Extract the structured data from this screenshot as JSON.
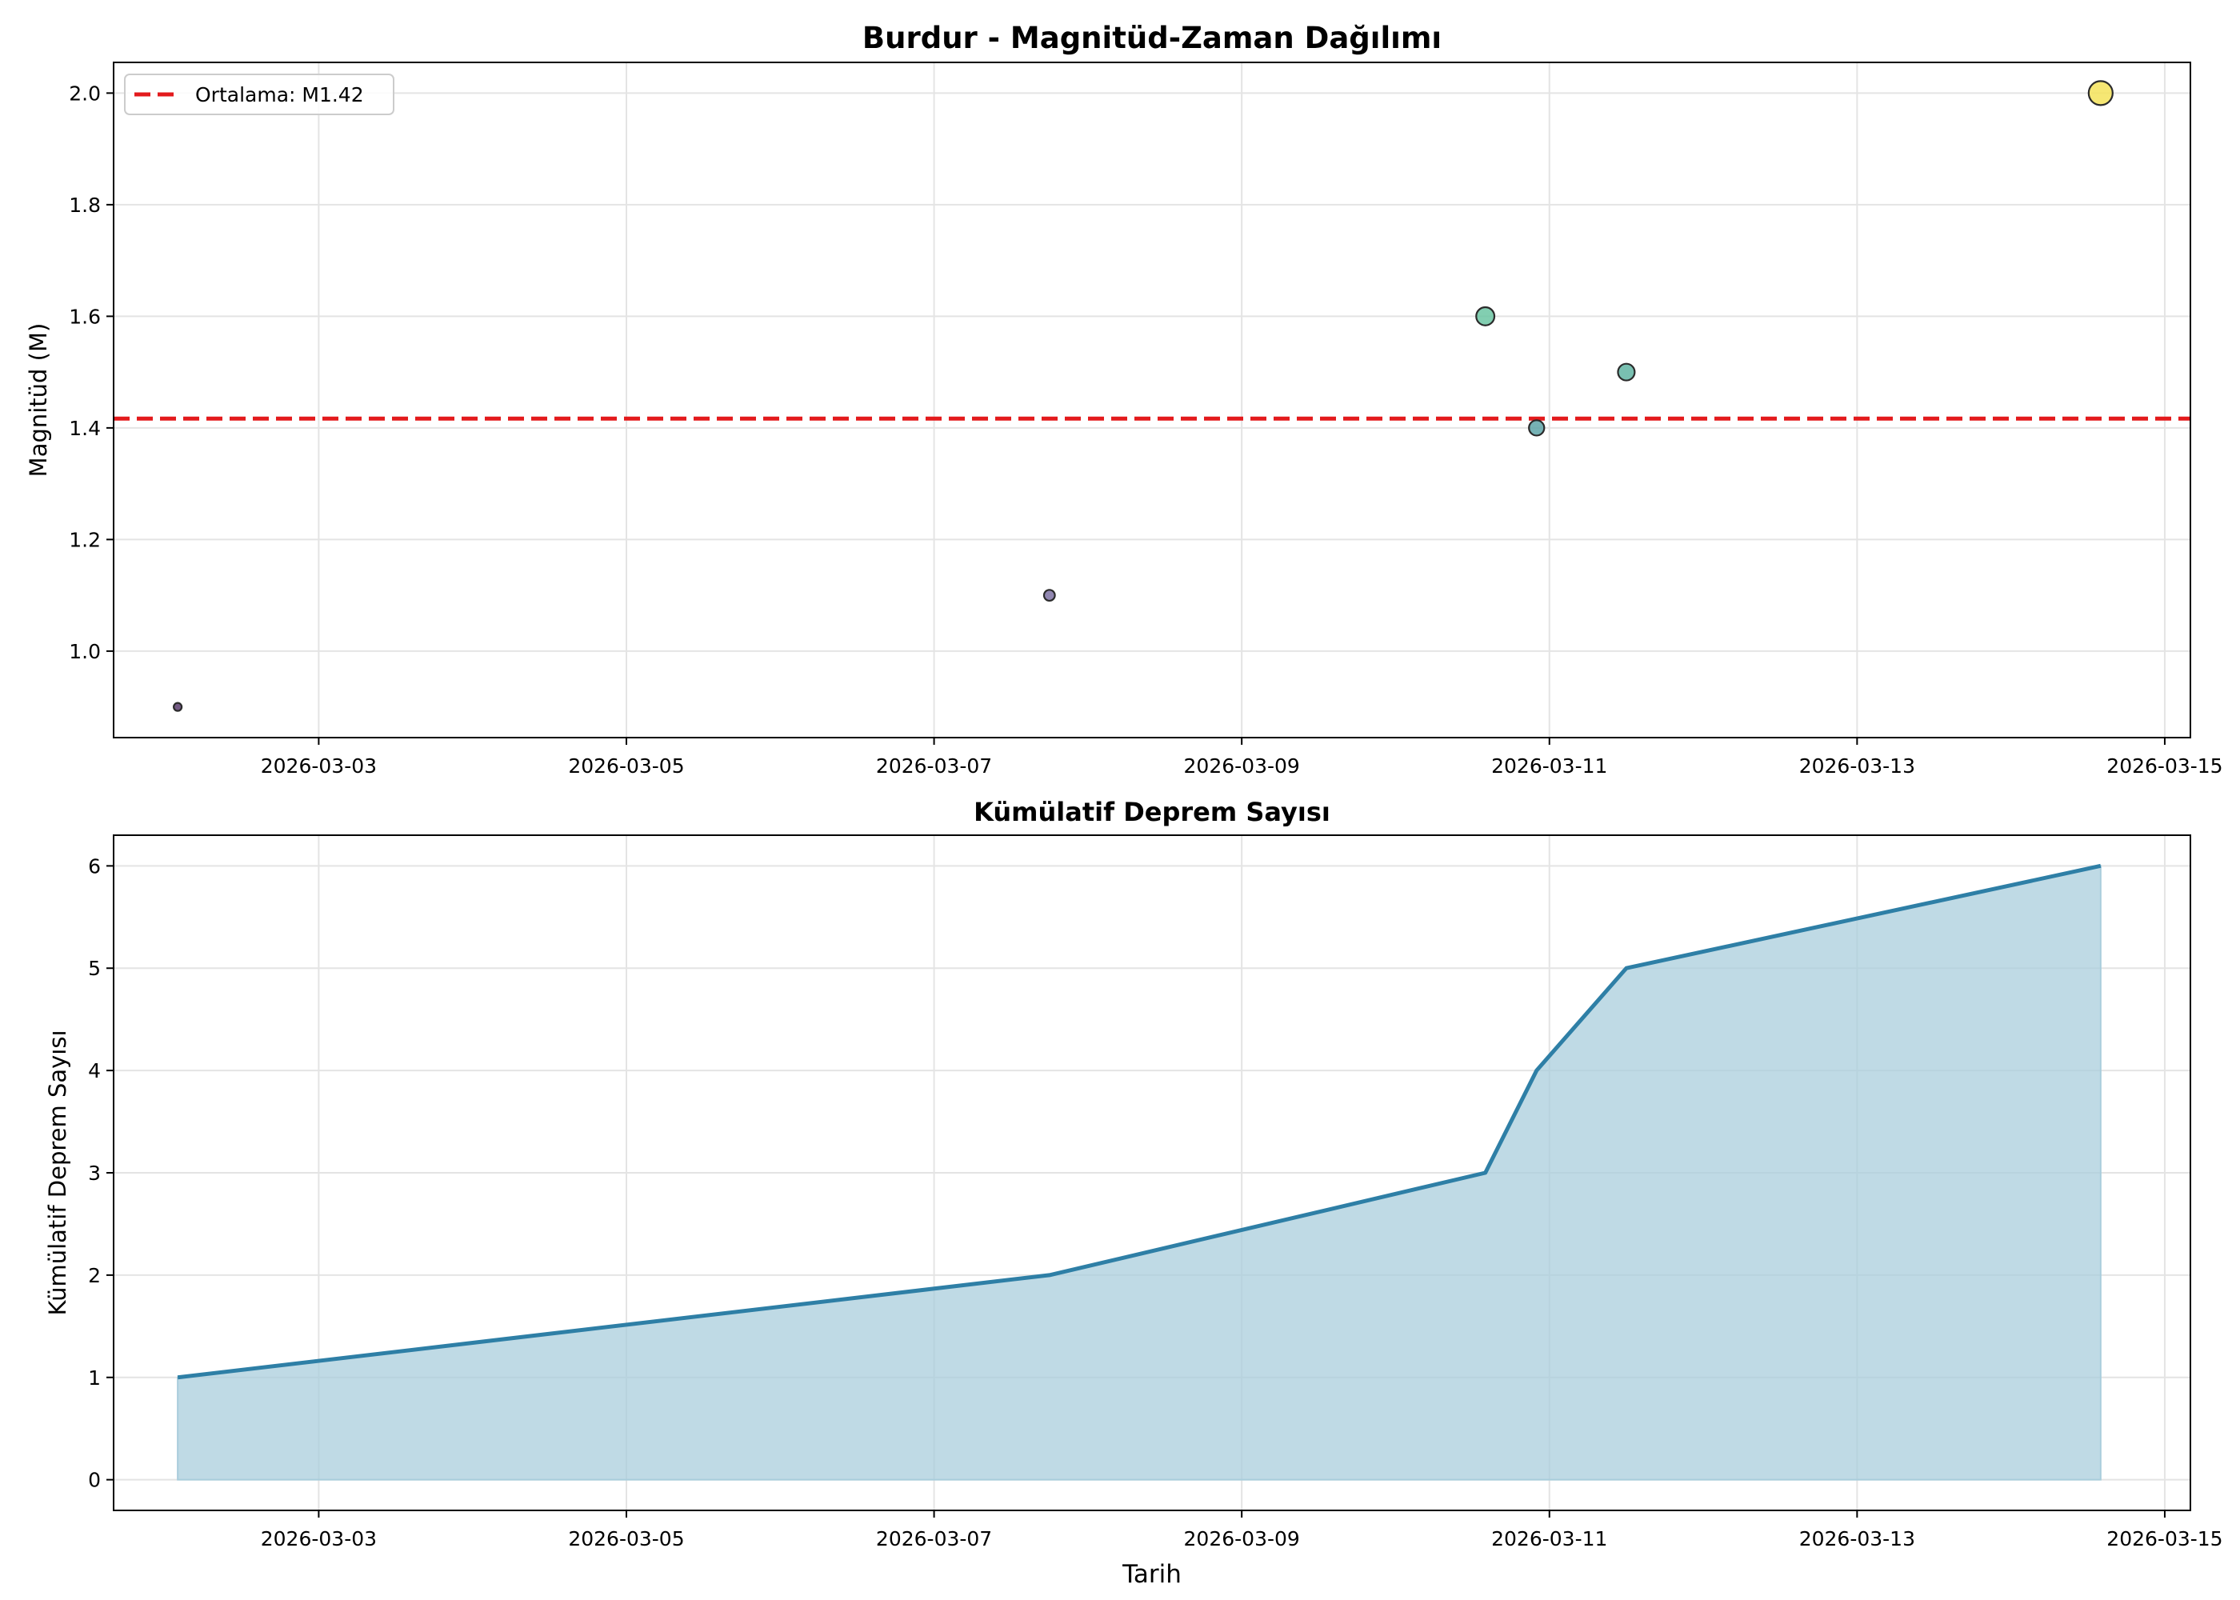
{
  "chart_data": [
    {
      "type": "scatter",
      "title": "Burdur - Magnitüd-Zaman Dağılımı",
      "xlabel": "",
      "ylabel": "Magnitüd (M)",
      "x_ticks": [
        "2026-03-03",
        "2026-03-05",
        "2026-03-07",
        "2026-03-09",
        "2026-03-11",
        "2026-03-13",
        "2026-03-15"
      ],
      "y_ticks": [
        "1.0",
        "1.2",
        "1.4",
        "1.6",
        "1.8",
        "2.0"
      ],
      "xlim": [
        "2026-03-01T16:00",
        "2026-03-15T04:00"
      ],
      "ylim": [
        0.845,
        2.055
      ],
      "grid": true,
      "legend_position": "top-left",
      "legend": [
        {
          "label": "Ortalama: M1.42",
          "color": "#e31a1c",
          "style": "dashed"
        }
      ],
      "mean_line": 1.4167,
      "points": [
        {
          "x": "2026-03-02T02:00",
          "y": 0.9,
          "color": "#5a3d6e"
        },
        {
          "x": "2026-03-07T18:00",
          "y": 1.1,
          "color": "#7e72a3"
        },
        {
          "x": "2026-03-10T14:00",
          "y": 1.6,
          "color": "#6cc6a3"
        },
        {
          "x": "2026-03-10T22:00",
          "y": 1.4,
          "color": "#5ea5a8"
        },
        {
          "x": "2026-03-11T12:00",
          "y": 1.5,
          "color": "#61b5a3"
        },
        {
          "x": "2026-03-14T14:00",
          "y": 2.0,
          "color": "#f5e35a"
        }
      ]
    },
    {
      "type": "area",
      "title": "Kümülatif Deprem Sayısı",
      "xlabel": "Tarih",
      "ylabel": "Kümülatif Deprem Sayısı",
      "x_ticks": [
        "2026-03-03",
        "2026-03-05",
        "2026-03-07",
        "2026-03-09",
        "2026-03-11",
        "2026-03-13",
        "2026-03-15"
      ],
      "y_ticks": [
        "0",
        "1",
        "2",
        "3",
        "4",
        "5",
        "6"
      ],
      "xlim": [
        "2026-03-01T16:00",
        "2026-03-15T04:00"
      ],
      "ylim": [
        -0.3,
        6.3
      ],
      "grid": true,
      "line_color": "#2e7fa6",
      "fill_color": "#a9cddc",
      "x": [
        "2026-03-02T02:00",
        "2026-03-07T18:00",
        "2026-03-10T14:00",
        "2026-03-10T22:00",
        "2026-03-11T12:00",
        "2026-03-14T14:00"
      ],
      "values": [
        1,
        2,
        3,
        4,
        5,
        6
      ]
    }
  ]
}
